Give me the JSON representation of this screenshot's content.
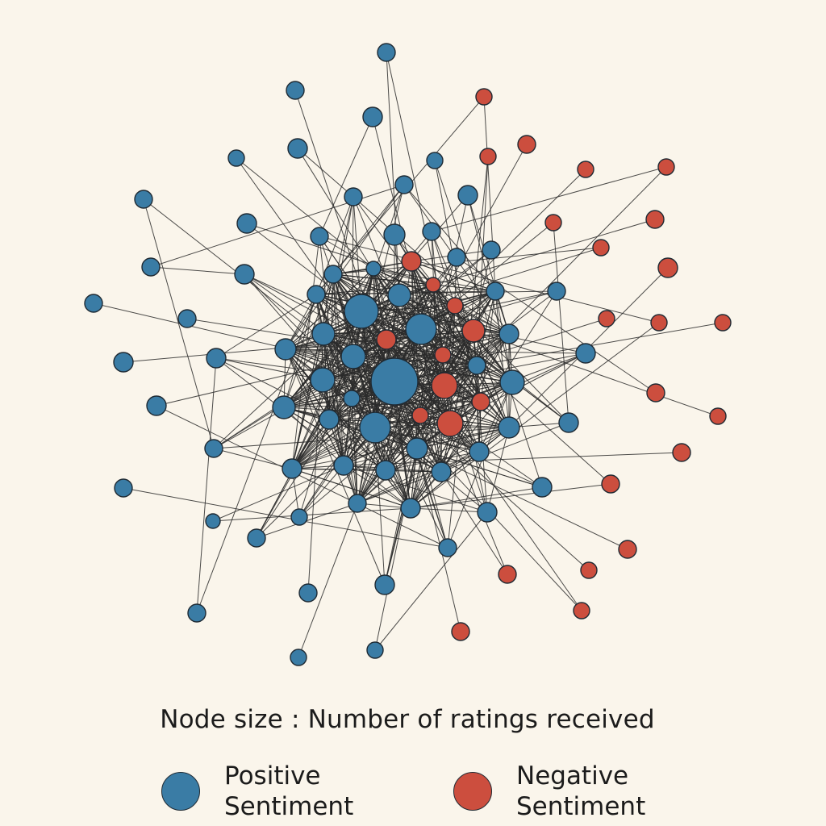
{
  "caption": "Node size : Number of ratings received",
  "legend": {
    "positive": {
      "label": "Positive Sentiment",
      "color": "#3a7ca5"
    },
    "negative": {
      "label": "Negative Sentiment",
      "color": "#cc4e3e"
    }
  },
  "colors": {
    "background": "#faf5eb",
    "edge": "#2b2b2b",
    "node_outline": "#1f2a33"
  }
}
